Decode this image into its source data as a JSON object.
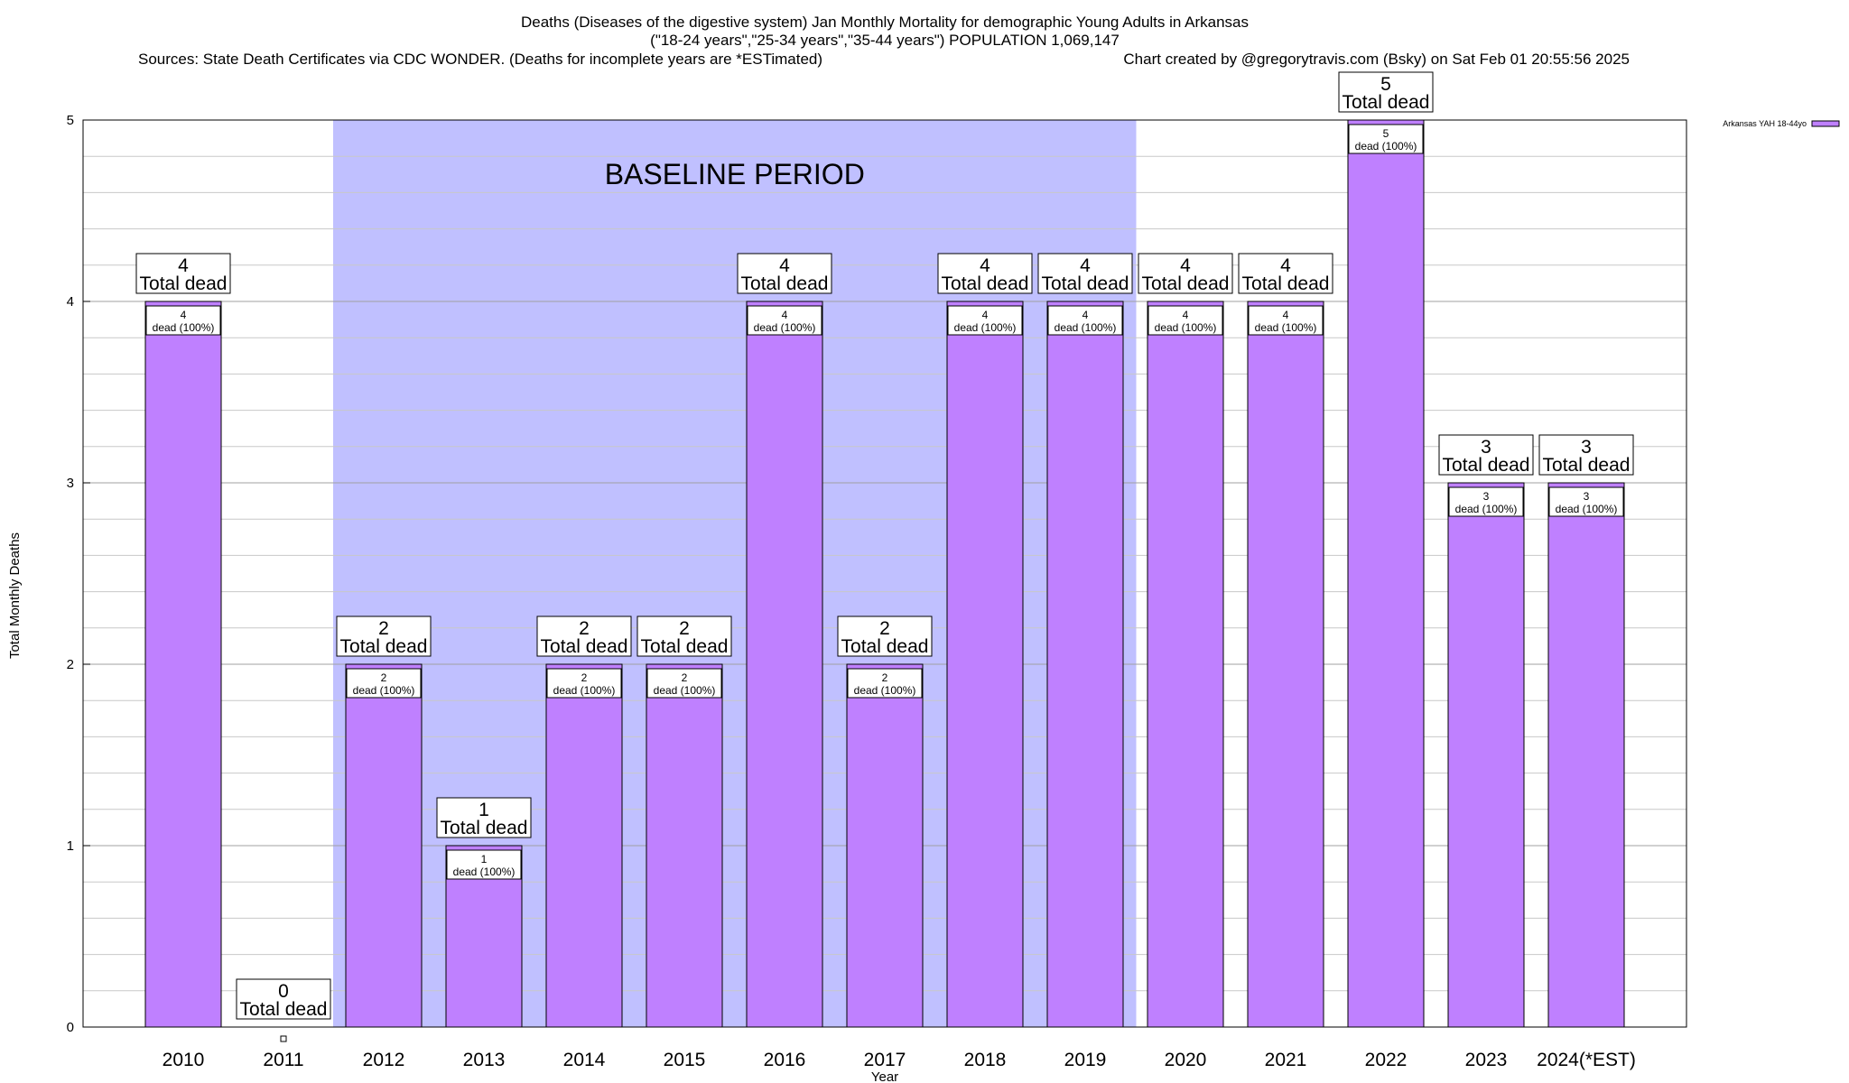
{
  "chart_data": {
    "type": "bar",
    "title_lines": [
      "Deaths (Diseases of the digestive system) Jan Monthly Mortality for demographic Young Adults in Arkansas",
      "(\"18-24 years\",\"25-34 years\",\"35-44 years\") POPULATION 1,069,147",
      "Sources: State Death Certificates via CDC WONDER. (Deaths for incomplete years are *ESTimated)",
      "Chart created by @gregorytravis.com (Bsky) on Sat Feb 01 20:55:56 2025"
    ],
    "xlabel": "Year",
    "ylabel": "Total Monthly Deaths",
    "ylim": [
      0,
      5
    ],
    "yticks": [
      0,
      1,
      2,
      3,
      4,
      5
    ],
    "categories": [
      "2010",
      "2011",
      "2012",
      "2013",
      "2014",
      "2015",
      "2016",
      "2017",
      "2018",
      "2019",
      "2020",
      "2021",
      "2022",
      "2023",
      "2024(*EST)"
    ],
    "series": [
      {
        "name": "Arkansas YAH 18-44yo",
        "values": [
          4,
          0,
          2,
          1,
          2,
          2,
          4,
          2,
          4,
          4,
          4,
          4,
          5,
          3,
          3
        ],
        "color": "#bf80ff"
      }
    ],
    "total_label": "Total dead",
    "inner_label_suffix": "dead (100%)",
    "baseline_period": {
      "label": "BASELINE PERIOD",
      "from_category": "2012",
      "to_category": "2019",
      "color": "#c0c0ff"
    },
    "grid": true,
    "legend_position": "top-right"
  }
}
